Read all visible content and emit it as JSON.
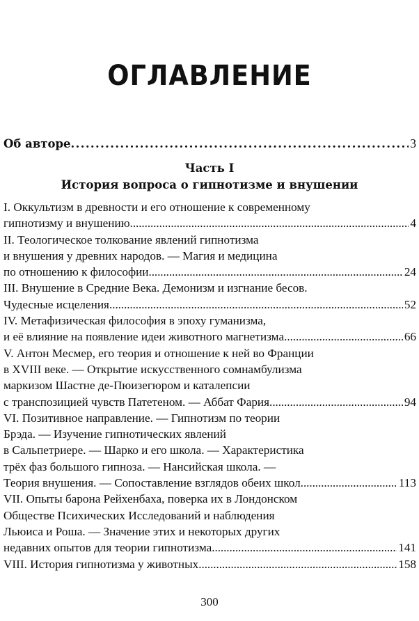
{
  "title": "ОГЛАВЛЕНИЕ",
  "about_author": {
    "label": "Об авторе",
    "page": "3"
  },
  "part": {
    "number": "Часть I",
    "title": "История вопроса о гипнотизме и внушении"
  },
  "entries": [
    {
      "lines": [
        "I. Оккультизм в древности и его отношение к современному",
        "гипнотизму и внушению."
      ],
      "page": "4"
    },
    {
      "lines": [
        "II. Теологическое толкование явлений гипнотизма",
        "и внушения у древних народов. — Магия и медицина",
        "по отношению к философии"
      ],
      "page": "24"
    },
    {
      "lines": [
        "III. Внушение в Средние Века. Демонизм и изгнание бесов.",
        "Чудесные исцеления."
      ],
      "page": "52"
    },
    {
      "lines": [
        "IV. Метафизическая философия в эпоху гуманизма,",
        "и её влияние на появление идеи животного магнетизма."
      ],
      "page": "66"
    },
    {
      "lines": [
        "V. Антон Месмер, его теория и отношение к ней во Франции",
        "в XVIII веке. — Открытие искусственного сомнамбулизма",
        "маркизом Шастне де-Пюизегюром и каталепсии",
        "с транспозицией чувств Патетеном. — Аббат Фария."
      ],
      "page": "94"
    },
    {
      "lines": [
        "VI. Позитивное направление. — Гипнотизм по теории",
        "Брэда. — Изучение гипнотических явлений",
        "в Сальпетриере. — Шарко и его школа. — Характеристика",
        "трёх фаз большого гипноза. — Нансийская школа. —",
        "Теория внушения. — Сопоставление взглядов обеих школ."
      ],
      "page": "113"
    },
    {
      "lines": [
        "VII. Опыты барона Рейхенбаха, поверка их в Лондонском",
        "Обществе Психических Исследований и наблюдения",
        "Льюиса и Роша. — Значение этих и некоторых других",
        "недавних опытов для теории гипнотизма."
      ],
      "page": "141"
    },
    {
      "lines": [
        "VIII. История гипнотизма у животных."
      ],
      "page": "158"
    }
  ],
  "page_number": "300"
}
